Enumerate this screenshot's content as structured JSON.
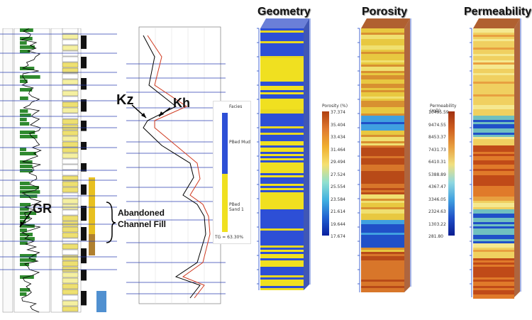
{
  "headers": {
    "geometry": "Geometry",
    "porosity": "Porosity",
    "permeability": "Permeability"
  },
  "annotations": {
    "kz": "Kz",
    "kh": "Kh",
    "gr": "GR",
    "channel_line1": "Abandoned",
    "channel_line2": "Channel Fill"
  },
  "facies_legend": {
    "title": "Facies",
    "mud": "PBed Mud",
    "sand": "PBed Sand 1",
    "footer": "TG = 63.30%"
  },
  "porosity_legend": {
    "title": "Porosity (%)",
    "ticks": [
      "37.374",
      "35.404",
      "33.434",
      "31.464",
      "29.494",
      "27.524",
      "25.554",
      "23.584",
      "21.614",
      "19.644",
      "17.674"
    ]
  },
  "permeability_legend": {
    "title": "Permeability (mD)",
    "ticks": [
      "10495.59",
      "9474.55",
      "8453.37",
      "7431.73",
      "6410.31",
      "5388.89",
      "4367.47",
      "3346.05",
      "2324.63",
      "1303.22",
      "281.80"
    ]
  },
  "colors": {
    "mud": "#2d4fd6",
    "sand": "#f0e020",
    "orange": "#c8501e",
    "green": "#2f8a2f"
  }
}
